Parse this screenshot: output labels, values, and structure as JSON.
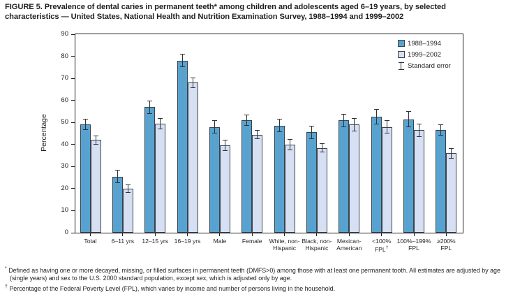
{
  "title_lines": [
    "FIGURE 5. Prevalence of dental caries in permanent teeth* among children and adolescents aged 6–19 years, by selected",
    "characteristics — United States, National Health and Nutrition Examination Survey, 1988–1994 and 1999–2002"
  ],
  "chart_data": {
    "type": "bar",
    "title": "",
    "xlabel": "",
    "ylabel": "Percentage",
    "ylim": [
      0,
      90
    ],
    "ytick_step": 10,
    "grid": false,
    "legend_position": "top-right-inside",
    "legend_error_label": "Standard error",
    "categories": [
      [
        "Total"
      ],
      [
        "6–11 yrs"
      ],
      [
        "12–15 yrs"
      ],
      [
        "16–19 yrs"
      ],
      [
        "Male"
      ],
      [
        "Female"
      ],
      [
        "White, non-",
        "Hispanic"
      ],
      [
        "Black, non-",
        "Hispanic"
      ],
      [
        "Mexican-",
        "American"
      ],
      [
        "<100%",
        "FPL†"
      ],
      [
        "100%–199%",
        "FPL"
      ],
      [
        "≥200%",
        "FPL"
      ]
    ],
    "series": [
      {
        "name": "1988–1994",
        "color": "#58a2cf",
        "values": [
          49,
          25.5,
          57,
          78,
          48,
          51,
          48.5,
          45.5,
          51,
          52.5,
          51.5,
          46.5
        ],
        "standard_errors": [
          2.5,
          3,
          3,
          3,
          3,
          2.5,
          3,
          3,
          3,
          3.5,
          3.5,
          2.5
        ]
      },
      {
        "name": "1999–2002",
        "color": "#d6e0f2",
        "values": [
          42,
          20,
          49.5,
          68,
          39.5,
          44.5,
          40,
          38.5,
          49,
          48,
          46.5,
          36
        ],
        "standard_errors": [
          2,
          2,
          2.5,
          2.5,
          2.5,
          2,
          2.5,
          2,
          3,
          3,
          3,
          2.5
        ]
      }
    ]
  },
  "colors": {
    "series_1988_1994": "#58a2cf",
    "series_1999_2002": "#d6e0f2",
    "bar_border": "#39424c",
    "axis": "#231f20",
    "text": "#231f20"
  },
  "footnotes": [
    {
      "marker": "*",
      "text": "Defined as having one or more decayed, missing, or filled surfaces in permanent teeth (DMFS>0) among those with at least one permanent tooth. All estimates are adjusted by age (single years) and sex to the U.S. 2000 standard population, except sex, which is adjusted only by age."
    },
    {
      "marker": "†",
      "text": "Percentage of the Federal Poverty Level (FPL), which varies by income and number of persons living in the household."
    }
  ]
}
